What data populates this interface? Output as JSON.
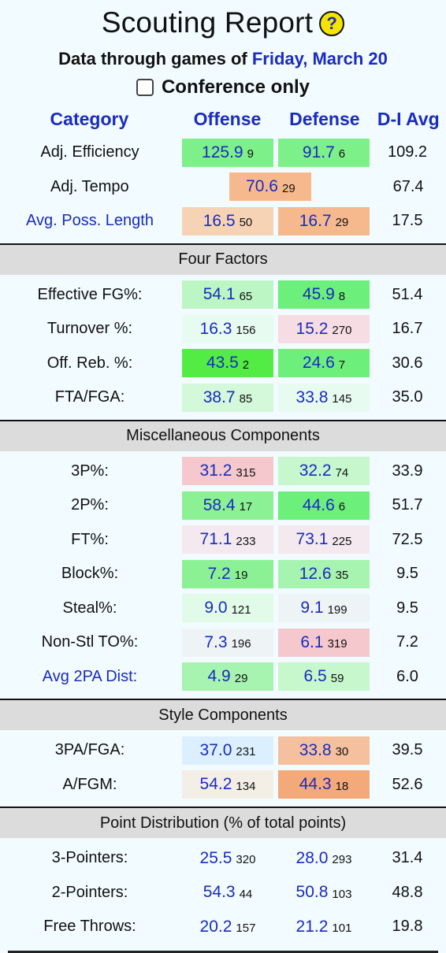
{
  "header": {
    "title": "Scouting Report",
    "subtitle_prefix": "Data through games of",
    "date": "Friday, March 20",
    "conference_only": "Conference only"
  },
  "columns": {
    "category": "Category",
    "offense": "Offense",
    "defense": "Defense",
    "avg": "D-I Avg"
  },
  "top_rows": [
    {
      "label": "Adj. Efficiency",
      "link": false,
      "off": {
        "v": "125.9",
        "r": "9",
        "bg": "#7ef08a"
      },
      "def": {
        "v": "91.7",
        "r": "6",
        "bg": "#7ef08a"
      },
      "avg": "109.2"
    },
    {
      "label": "Adj. Tempo",
      "link": false,
      "center": {
        "v": "70.6",
        "r": "29",
        "bg": "#f5b98d"
      },
      "avg": "67.4"
    },
    {
      "label": "Avg. Poss. Length",
      "link": true,
      "off": {
        "v": "16.5",
        "r": "50",
        "bg": "#f7d3b6"
      },
      "def": {
        "v": "16.7",
        "r": "29",
        "bg": "#f5b98d"
      },
      "avg": "17.5"
    }
  ],
  "sections": [
    {
      "title": "Four Factors",
      "rows": [
        {
          "label": "Effective FG%:",
          "link": false,
          "off": {
            "v": "54.1",
            "r": "65",
            "bg": "#bdf6c5"
          },
          "def": {
            "v": "45.9",
            "r": "8",
            "bg": "#6def7c"
          },
          "avg": "51.4"
        },
        {
          "label": "Turnover %:",
          "link": false,
          "off": {
            "v": "16.3",
            "r": "156",
            "bg": "#e8fbf0"
          },
          "def": {
            "v": "15.2",
            "r": "270",
            "bg": "#f6dde3"
          },
          "avg": "16.7"
        },
        {
          "label": "Off. Reb. %:",
          "link": false,
          "off": {
            "v": "43.5",
            "r": "2",
            "bg": "#52ec45"
          },
          "def": {
            "v": "24.6",
            "r": "7",
            "bg": "#6def7c"
          },
          "avg": "30.6"
        },
        {
          "label": "FTA/FGA:",
          "link": false,
          "off": {
            "v": "38.7",
            "r": "85",
            "bg": "#d3f8da"
          },
          "def": {
            "v": "33.8",
            "r": "145",
            "bg": "#e8fbf0"
          },
          "avg": "35.0"
        }
      ]
    },
    {
      "title": "Miscellaneous Components",
      "rows": [
        {
          "label": "3P%:",
          "link": false,
          "off": {
            "v": "31.2",
            "r": "315",
            "bg": "#f5c8cd"
          },
          "def": {
            "v": "32.2",
            "r": "74",
            "bg": "#c6f7cd"
          },
          "avg": "33.9"
        },
        {
          "label": "2P%:",
          "link": false,
          "off": {
            "v": "58.4",
            "r": "17",
            "bg": "#8cf195"
          },
          "def": {
            "v": "44.6",
            "r": "6",
            "bg": "#6def7c"
          },
          "avg": "51.7"
        },
        {
          "label": "FT%:",
          "link": false,
          "off": {
            "v": "71.1",
            "r": "233",
            "bg": "#f4e9ee"
          },
          "def": {
            "v": "73.1",
            "r": "225",
            "bg": "#f4e9ee"
          },
          "avg": "72.5"
        },
        {
          "label": "Block%:",
          "link": false,
          "off": {
            "v": "7.2",
            "r": "19",
            "bg": "#8cf195"
          },
          "def": {
            "v": "12.6",
            "r": "35",
            "bg": "#a7f3b0"
          },
          "avg": "9.5"
        },
        {
          "label": "Steal%:",
          "link": false,
          "off": {
            "v": "9.0",
            "r": "121",
            "bg": "#e2fbe8"
          },
          "def": {
            "v": "9.1",
            "r": "199",
            "bg": "#eef3f6"
          },
          "avg": "9.5"
        },
        {
          "label": "Non-Stl TO%:",
          "link": false,
          "off": {
            "v": "7.3",
            "r": "196",
            "bg": "#eef3f6"
          },
          "def": {
            "v": "6.1",
            "r": "319",
            "bg": "#f5c8cd"
          },
          "avg": "7.2"
        },
        {
          "label": "Avg 2PA Dist:",
          "link": true,
          "off": {
            "v": "4.9",
            "r": "29",
            "bg": "#a7f3b0"
          },
          "def": {
            "v": "6.5",
            "r": "59",
            "bg": "#c6f7cd"
          },
          "avg": "6.0"
        }
      ]
    },
    {
      "title": "Style Components",
      "rows": [
        {
          "label": "3PA/FGA:",
          "link": false,
          "off": {
            "v": "37.0",
            "r": "231",
            "bg": "#dcefff"
          },
          "def": {
            "v": "33.8",
            "r": "30",
            "bg": "#f5c09d"
          },
          "avg": "39.5"
        },
        {
          "label": "A/FGM:",
          "link": false,
          "off": {
            "v": "54.2",
            "r": "134",
            "bg": "#f3efe6"
          },
          "def": {
            "v": "44.3",
            "r": "18",
            "bg": "#f4a97a"
          },
          "avg": "52.6"
        }
      ]
    },
    {
      "title": "Point Distribution (% of total points)",
      "rows": [
        {
          "label": "3-Pointers:",
          "link": false,
          "off": {
            "v": "25.5",
            "r": "320",
            "bg": "transparent"
          },
          "def": {
            "v": "28.0",
            "r": "293",
            "bg": "transparent"
          },
          "avg": "31.4"
        },
        {
          "label": "2-Pointers:",
          "link": false,
          "off": {
            "v": "54.3",
            "r": "44",
            "bg": "transparent"
          },
          "def": {
            "v": "50.8",
            "r": "103",
            "bg": "transparent"
          },
          "avg": "48.8"
        },
        {
          "label": "Free Throws:",
          "link": false,
          "off": {
            "v": "20.2",
            "r": "157",
            "bg": "transparent"
          },
          "def": {
            "v": "21.2",
            "r": "101",
            "bg": "transparent"
          },
          "avg": "19.8"
        }
      ]
    }
  ]
}
